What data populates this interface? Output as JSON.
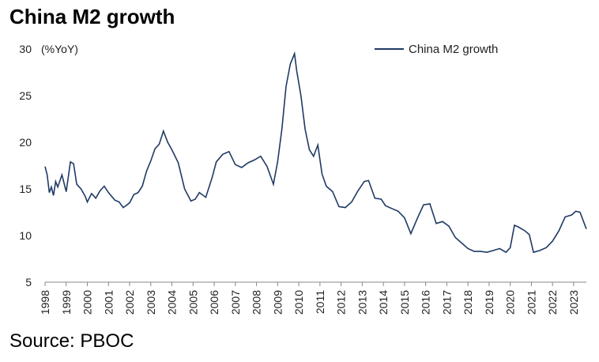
{
  "header": {
    "title": "China M2 growth"
  },
  "footer": {
    "source": "Source: PBOC"
  },
  "chart_data": {
    "type": "line",
    "title": "China M2 growth",
    "ylabel": "(%YoY)",
    "xlabel": "",
    "ylim": [
      5,
      30
    ],
    "yticks": [
      5,
      10,
      15,
      20,
      25,
      30
    ],
    "xlim": [
      1998,
      2023.6
    ],
    "xticks": [
      "1998",
      "1999",
      "2000",
      "2001",
      "2002",
      "2003",
      "2004",
      "2005",
      "2006",
      "2007",
      "2008",
      "2009",
      "2010",
      "2011",
      "2012",
      "2013",
      "2014",
      "2015",
      "2016",
      "2017",
      "2018",
      "2019",
      "2020",
      "2021",
      "2022",
      "2023"
    ],
    "legend": "top-right",
    "grid": false,
    "color": "#1f3a64",
    "series": [
      {
        "name": "China M2 growth",
        "x": [
          1998.0,
          1998.1,
          1998.2,
          1998.3,
          1998.4,
          1998.5,
          1998.6,
          1998.8,
          1999.0,
          1999.2,
          1999.35,
          1999.5,
          1999.7,
          1999.9,
          2000.0,
          2000.2,
          2000.4,
          2000.6,
          2000.8,
          2001.0,
          2001.3,
          2001.5,
          2001.7,
          2002.0,
          2002.2,
          2002.4,
          2002.6,
          2002.8,
          2003.0,
          2003.2,
          2003.4,
          2003.6,
          2003.8,
          2004.0,
          2004.3,
          2004.6,
          2004.9,
          2005.1,
          2005.3,
          2005.6,
          2005.9,
          2006.1,
          2006.4,
          2006.7,
          2007.0,
          2007.3,
          2007.6,
          2007.9,
          2008.2,
          2008.5,
          2008.8,
          2009.0,
          2009.2,
          2009.4,
          2009.6,
          2009.8,
          2009.9,
          2010.1,
          2010.3,
          2010.5,
          2010.7,
          2010.9,
          2011.1,
          2011.3,
          2011.6,
          2011.9,
          2012.2,
          2012.5,
          2012.8,
          2013.1,
          2013.3,
          2013.6,
          2013.9,
          2014.1,
          2014.4,
          2014.7,
          2015.0,
          2015.3,
          2015.6,
          2015.9,
          2016.2,
          2016.5,
          2016.8,
          2017.1,
          2017.4,
          2017.7,
          2018.0,
          2018.3,
          2018.6,
          2018.9,
          2019.2,
          2019.5,
          2019.8,
          2020.0,
          2020.2,
          2020.4,
          2020.7,
          2020.9,
          2021.1,
          2021.4,
          2021.7,
          2022.0,
          2022.3,
          2022.6,
          2022.9,
          2023.1,
          2023.3,
          2023.6
        ],
        "values": [
          17.4,
          16.5,
          14.6,
          15.2,
          14.3,
          15.8,
          15.2,
          16.5,
          14.7,
          17.9,
          17.7,
          15.5,
          15.0,
          14.2,
          13.6,
          14.5,
          14.0,
          14.8,
          15.3,
          14.6,
          13.8,
          13.6,
          13.0,
          13.5,
          14.4,
          14.6,
          15.3,
          16.9,
          18.0,
          19.3,
          19.8,
          21.2,
          20.0,
          19.2,
          17.8,
          15.0,
          13.7,
          13.9,
          14.6,
          14.1,
          16.2,
          17.9,
          18.7,
          19.0,
          17.6,
          17.3,
          17.8,
          18.1,
          18.5,
          17.4,
          15.5,
          17.9,
          21.4,
          26.0,
          28.4,
          29.5,
          27.7,
          25.0,
          21.4,
          19.2,
          18.5,
          19.7,
          16.6,
          15.3,
          14.7,
          13.1,
          13.0,
          13.6,
          14.8,
          15.8,
          15.9,
          14.0,
          13.9,
          13.2,
          12.9,
          12.6,
          11.9,
          10.2,
          11.8,
          13.3,
          13.4,
          11.3,
          11.5,
          11.0,
          9.8,
          9.2,
          8.6,
          8.3,
          8.3,
          8.2,
          8.4,
          8.6,
          8.2,
          8.7,
          11.1,
          10.9,
          10.5,
          10.1,
          8.2,
          8.4,
          8.7,
          9.4,
          10.5,
          12.0,
          12.2,
          12.6,
          12.5,
          10.7
        ]
      }
    ]
  }
}
